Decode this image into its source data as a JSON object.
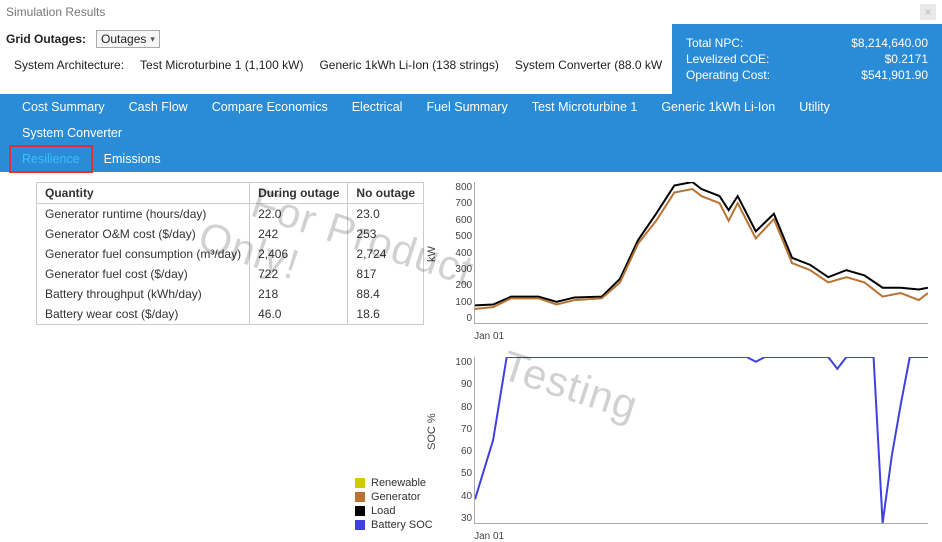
{
  "window": {
    "title": "Simulation Results"
  },
  "outages": {
    "label": "Grid Outages:",
    "selected": "Outages"
  },
  "architecture": {
    "label": "System Architecture:",
    "items": [
      "Test Microturbine 1 (1,100 kW)",
      "Generic 1kWh Li-Ion (138 strings)",
      "System Converter (88.0 kW"
    ]
  },
  "summary": {
    "rows": [
      {
        "label": "Total NPC:",
        "value": "$8,214,640.00"
      },
      {
        "label": "Levelized COE:",
        "value": "$0.2171"
      },
      {
        "label": "Operating Cost:",
        "value": "$541,901.90"
      }
    ],
    "bg": "#2a8bd6"
  },
  "tabs": {
    "row1": [
      "Cost Summary",
      "Cash Flow",
      "Compare Economics",
      "Electrical",
      "Fuel Summary",
      "Test Microturbine 1",
      "Generic 1kWh Li-Ion",
      "Utility",
      "System Converter"
    ],
    "row2": [
      "Resilience",
      "Emissions"
    ],
    "active": "Resilience",
    "highlight": "Resilience"
  },
  "table": {
    "columns": [
      "Quantity",
      "During outage",
      "No outage"
    ],
    "rows": [
      [
        "Generator runtime (hours/day)",
        "22.0",
        "23.0"
      ],
      [
        "Generator O&M cost ($/day)",
        "242",
        "253"
      ],
      [
        "Generator fuel consumption (m³/day)",
        "2,406",
        "2,724"
      ],
      [
        "Generator fuel cost ($/day)",
        "722",
        "817"
      ],
      [
        "Battery throughput (kWh/day)",
        "218",
        "88.4"
      ],
      [
        "Battery wear cost ($/day)",
        "46.0",
        "18.6"
      ]
    ]
  },
  "legend": {
    "items": [
      {
        "label": "Renewable",
        "color": "#cccc00"
      },
      {
        "label": "Generator",
        "color": "#b87333"
      },
      {
        "label": "Load",
        "color": "#000000"
      },
      {
        "label": "Battery SOC",
        "color": "#4040e0"
      }
    ]
  },
  "chart1": {
    "ylabel": "kW",
    "ymin": 0,
    "ymax": 800,
    "yticks": [
      800,
      700,
      600,
      500,
      400,
      300,
      200,
      100,
      0
    ],
    "xlabel": "Jan 01",
    "series": [
      {
        "name": "Load",
        "color": "#000000",
        "width": 2,
        "points": [
          [
            0,
            100
          ],
          [
            4,
            105
          ],
          [
            8,
            150
          ],
          [
            14,
            150
          ],
          [
            18,
            120
          ],
          [
            22,
            145
          ],
          [
            28,
            150
          ],
          [
            32,
            250
          ],
          [
            36,
            470
          ],
          [
            40,
            620
          ],
          [
            44,
            780
          ],
          [
            48,
            800
          ],
          [
            50,
            760
          ],
          [
            54,
            720
          ],
          [
            56,
            640
          ],
          [
            58,
            720
          ],
          [
            62,
            520
          ],
          [
            66,
            620
          ],
          [
            70,
            370
          ],
          [
            74,
            330
          ],
          [
            78,
            260
          ],
          [
            82,
            300
          ],
          [
            86,
            270
          ],
          [
            90,
            200
          ],
          [
            94,
            200
          ],
          [
            98,
            190
          ],
          [
            100,
            200
          ]
        ]
      },
      {
        "name": "Generator",
        "color": "#b87333",
        "width": 2,
        "points": [
          [
            0,
            80
          ],
          [
            4,
            90
          ],
          [
            8,
            140
          ],
          [
            14,
            140
          ],
          [
            18,
            105
          ],
          [
            22,
            130
          ],
          [
            28,
            140
          ],
          [
            32,
            230
          ],
          [
            36,
            450
          ],
          [
            40,
            580
          ],
          [
            44,
            740
          ],
          [
            48,
            760
          ],
          [
            50,
            720
          ],
          [
            54,
            680
          ],
          [
            56,
            580
          ],
          [
            58,
            680
          ],
          [
            62,
            480
          ],
          [
            66,
            590
          ],
          [
            70,
            340
          ],
          [
            74,
            300
          ],
          [
            78,
            230
          ],
          [
            82,
            260
          ],
          [
            86,
            230
          ],
          [
            90,
            150
          ],
          [
            94,
            170
          ],
          [
            98,
            130
          ],
          [
            100,
            170
          ]
        ]
      }
    ]
  },
  "chart2": {
    "ylabel": "SOC %",
    "ymin": 30,
    "ymax": 100,
    "yticks": [
      100,
      90,
      80,
      70,
      60,
      50,
      40,
      30
    ],
    "xlabel": "Jan 01",
    "series": [
      {
        "name": "Battery SOC",
        "color": "#4040e0",
        "width": 2,
        "points": [
          [
            0,
            40
          ],
          [
            4,
            65
          ],
          [
            7,
            100
          ],
          [
            60,
            100
          ],
          [
            62,
            98
          ],
          [
            64,
            100
          ],
          [
            78,
            100
          ],
          [
            80,
            95
          ],
          [
            82,
            100
          ],
          [
            88,
            100
          ],
          [
            90,
            30
          ],
          [
            92,
            58
          ],
          [
            94,
            80
          ],
          [
            96,
            100
          ],
          [
            100,
            100
          ]
        ]
      }
    ]
  },
  "watermarks": [
    "For Product",
    "Only!",
    "Testing"
  ]
}
